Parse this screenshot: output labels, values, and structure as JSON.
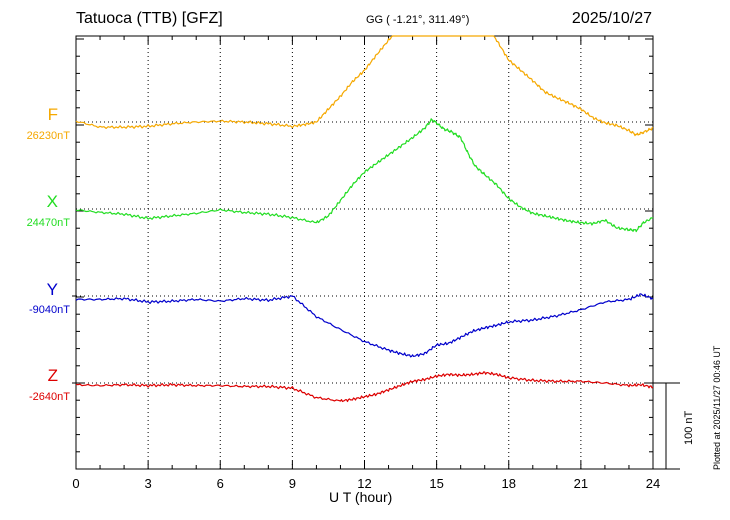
{
  "header": {
    "station": "Tatuoca (TTB)  [GFZ]",
    "coords": "GG ( -1.21°, 311.49°)",
    "date": "2025/10/27"
  },
  "footer": {
    "plotted": "Plotted at 2025/11/27 00:46 UT",
    "scale_label": "100 nT"
  },
  "chart_data": {
    "type": "line",
    "title": "Tatuoca (TTB)  [GFZ]",
    "xlabel": "U T (hour)",
    "ylabel": "",
    "xlim": [
      0,
      24
    ],
    "x_ticks": [
      "0",
      "3",
      "6",
      "9",
      "12",
      "15",
      "18",
      "21",
      "24"
    ],
    "scale_bar_nT": 100,
    "grid": true,
    "colors": {
      "F": "#f5a800",
      "X": "#22dd22",
      "Y": "#0000cc",
      "Z": "#dd0000"
    },
    "series": [
      {
        "name": "F",
        "base_label": "26230nT",
        "baseline_nT": 26230,
        "x": [
          0,
          1,
          2,
          3,
          4,
          5,
          6,
          7,
          8,
          9,
          9.5,
          10,
          10.5,
          11,
          11.5,
          12,
          12.5,
          13,
          13.5,
          14,
          14.5,
          15,
          15.5,
          16,
          16.5,
          17,
          17.5,
          18,
          18.5,
          19,
          19.5,
          20,
          20.5,
          21,
          21.5,
          22,
          22.5,
          23,
          23.3,
          23.6,
          24
        ],
        "values": [
          1,
          -6,
          -6,
          -5,
          -2,
          0,
          1,
          0,
          -2,
          -5,
          -3,
          0,
          15,
          30,
          47,
          60,
          78,
          95,
          111,
          125,
          135,
          145,
          145,
          145,
          130,
          115,
          95,
          72,
          60,
          48,
          35,
          28,
          22,
          15,
          5,
          -1,
          -4,
          -10,
          -15,
          -12,
          -7
        ]
      },
      {
        "name": "X",
        "base_label": "24470nT",
        "baseline_nT": 24470,
        "x": [
          0,
          1,
          2,
          3,
          4,
          5,
          6,
          7,
          8,
          9,
          10,
          10.5,
          11,
          11.5,
          12,
          12.5,
          13,
          13.5,
          14,
          14.5,
          14.8,
          15,
          15.3,
          15.6,
          16,
          16.3,
          16.6,
          17,
          17.5,
          18,
          18.5,
          19,
          19.5,
          20,
          20.5,
          21,
          21.5,
          22,
          22.5,
          23,
          23.3,
          23.6,
          24
        ],
        "values": [
          -1,
          -4,
          -6,
          -11,
          -8,
          -5,
          -1,
          -4,
          -6,
          -10,
          -16,
          -8,
          10,
          28,
          43,
          53,
          63,
          73,
          83,
          94,
          104,
          100,
          93,
          90,
          83,
          65,
          50,
          40,
          28,
          12,
          2,
          -5,
          -8,
          -11,
          -14,
          -16,
          -17,
          -13,
          -22,
          -24,
          -25,
          -16,
          -10
        ]
      },
      {
        "name": "Y",
        "base_label": "-9040nT",
        "baseline_nT": -9040,
        "x": [
          0,
          1,
          2,
          3,
          4,
          5,
          6,
          7,
          8,
          9,
          10,
          11,
          12,
          13,
          13.5,
          14,
          14.5,
          15,
          15.5,
          16,
          16.5,
          17,
          17.5,
          18,
          19,
          20,
          21,
          22,
          23,
          23.5,
          24
        ],
        "values": [
          -4,
          -4,
          -3,
          -7,
          -6,
          -4,
          -6,
          -3,
          -5,
          0,
          -24,
          -39,
          -53,
          -63,
          -67,
          -70,
          -67,
          -57,
          -55,
          -48,
          -41,
          -37,
          -34,
          -30,
          -28,
          -23,
          -16,
          -7,
          -4,
          2,
          -3
        ]
      },
      {
        "name": "Z",
        "base_label": "-2640nT",
        "baseline_nT": -2640,
        "x": [
          0,
          1,
          2,
          3,
          4,
          5,
          6,
          7,
          8,
          9,
          10,
          11,
          11.5,
          12,
          12.5,
          13,
          13.5,
          14,
          14.5,
          15,
          15.5,
          16,
          16.5,
          17,
          17.5,
          18,
          19,
          20,
          21,
          22,
          23,
          23.5,
          24
        ],
        "values": [
          -2,
          -3,
          -2,
          -3,
          -2,
          -3,
          -3,
          -4,
          -4,
          -6,
          -17,
          -21,
          -19,
          -16,
          -13,
          -8,
          -3,
          2,
          4,
          8,
          10,
          9,
          10,
          12,
          10,
          6,
          3,
          2,
          2,
          0,
          -3,
          -2,
          -5
        ]
      }
    ]
  }
}
